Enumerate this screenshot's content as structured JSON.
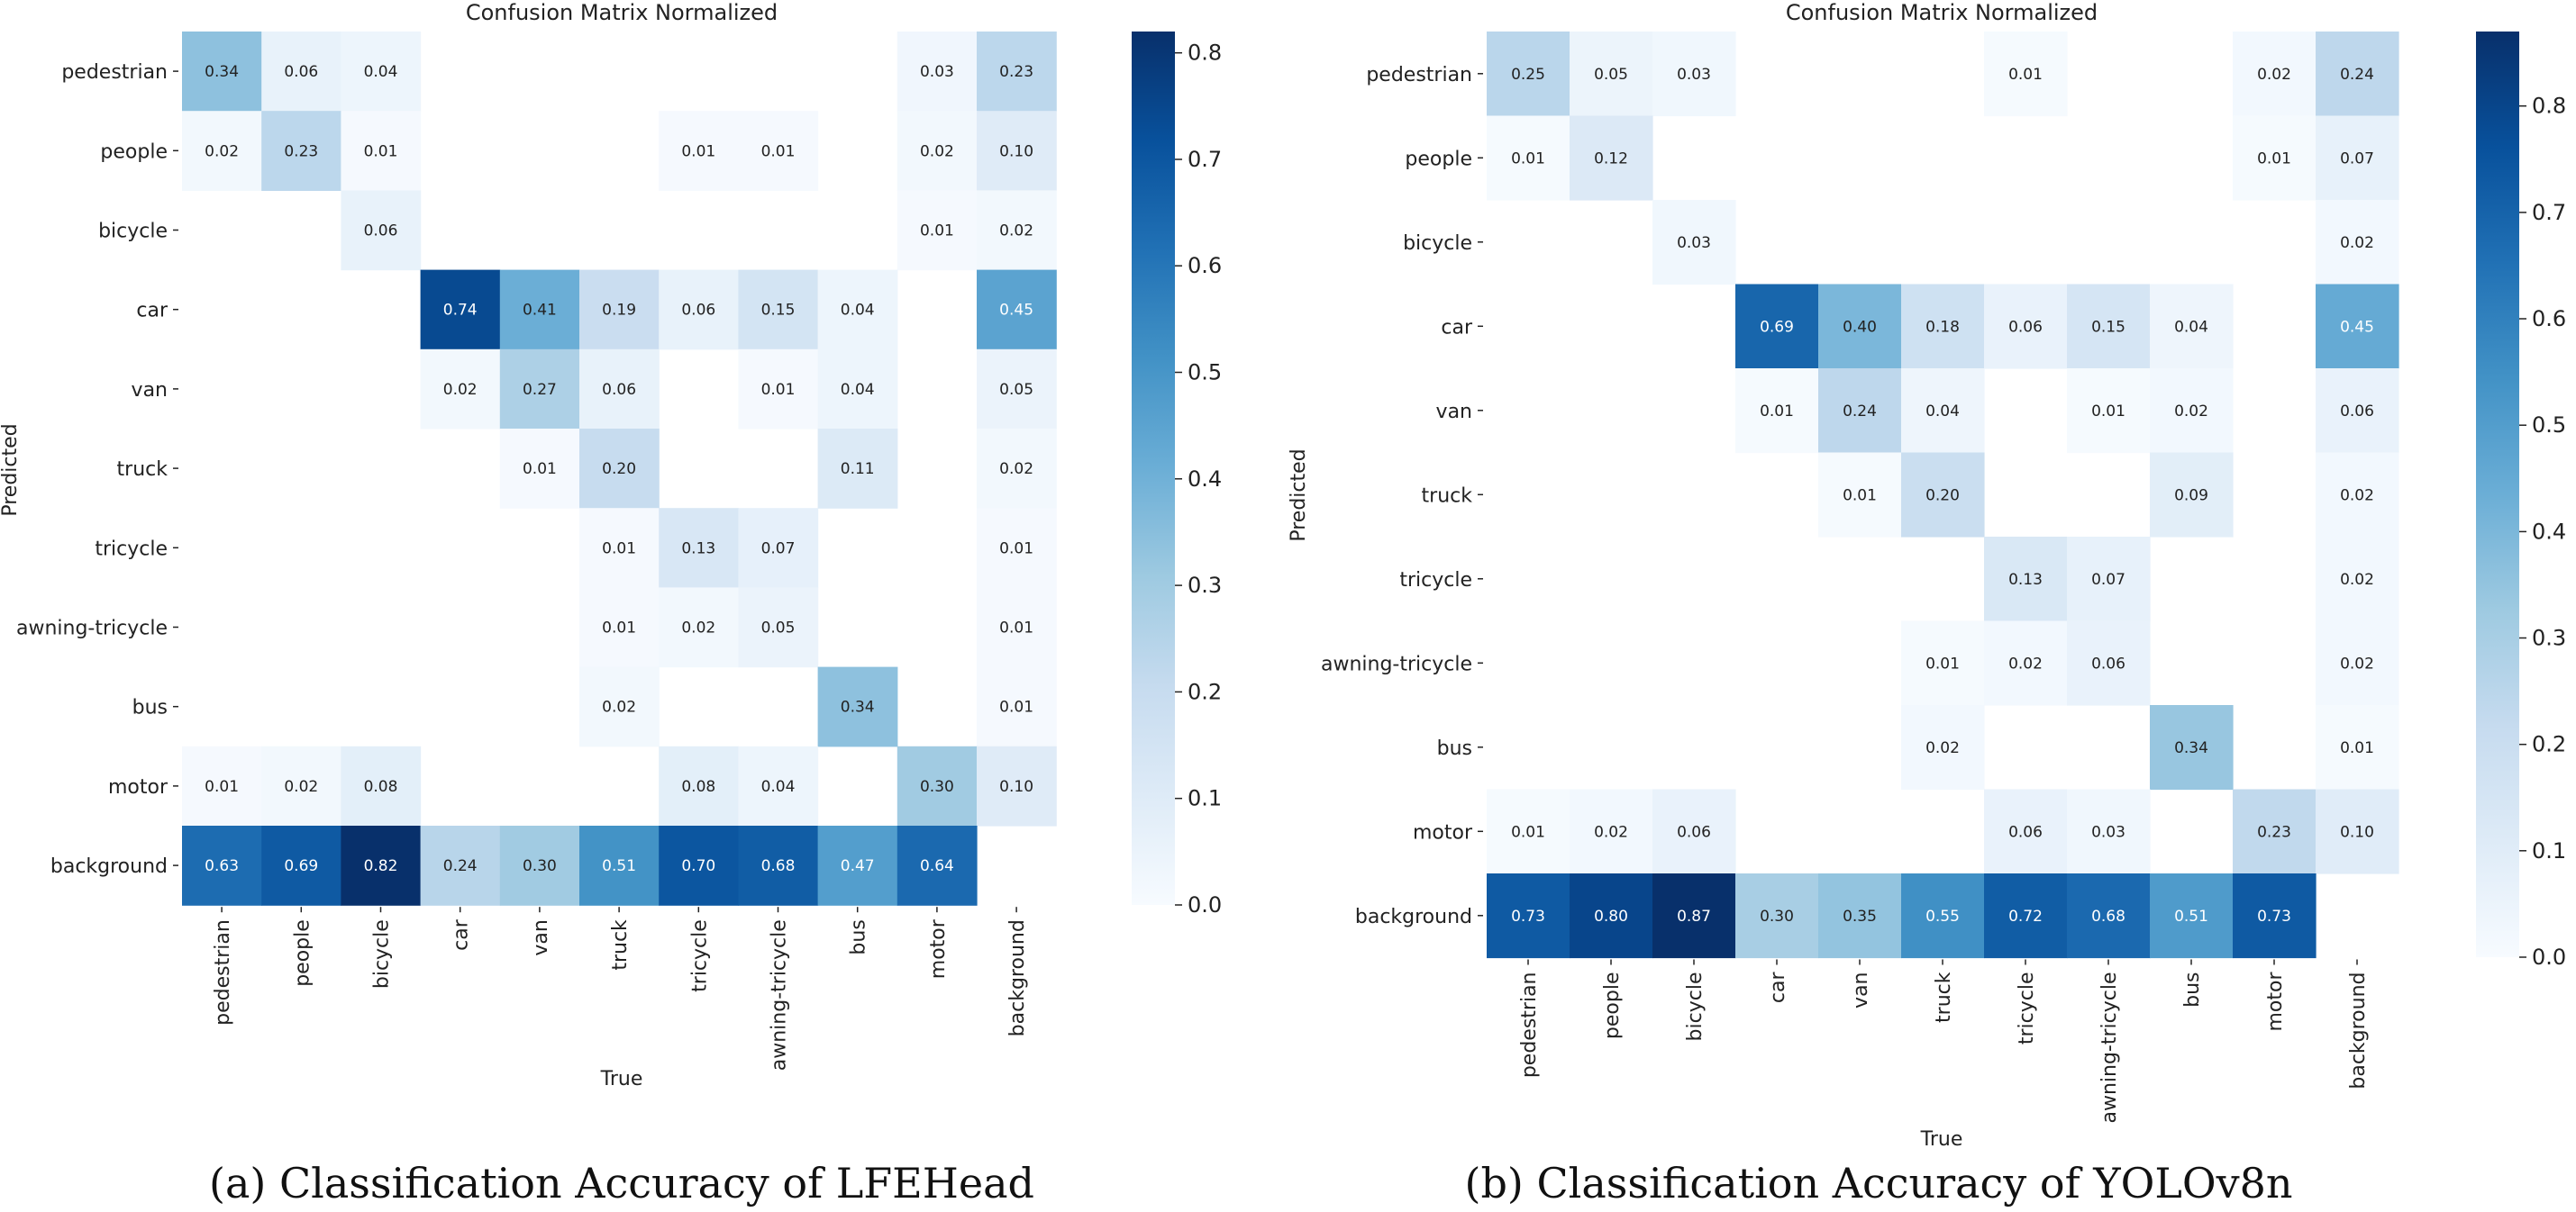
{
  "chart_data": [
    {
      "type": "heatmap",
      "title": "Confusion Matrix Normalized",
      "xlabel": "True",
      "ylabel": "Predicted",
      "caption": "(a) Classification Accuracy of LFEHead",
      "x_labels": [
        "pedestrian",
        "people",
        "bicycle",
        "car",
        "van",
        "truck",
        "tricycle",
        "awning-tricycle",
        "bus",
        "motor",
        "background"
      ],
      "y_labels": [
        "pedestrian",
        "people",
        "bicycle",
        "car",
        "van",
        "truck",
        "tricycle",
        "awning-tricycle",
        "bus",
        "motor",
        "background"
      ],
      "colorbar": {
        "min": 0,
        "max": 0.82,
        "ticks": [
          "0.0",
          "0.1",
          "0.2",
          "0.3",
          "0.4",
          "0.5",
          "0.6",
          "0.7",
          "0.8"
        ]
      },
      "values": [
        [
          0.34,
          0.06,
          0.04,
          null,
          null,
          null,
          null,
          null,
          null,
          0.03,
          0.23
        ],
        [
          0.02,
          0.23,
          0.01,
          null,
          null,
          null,
          0.01,
          0.01,
          null,
          0.02,
          0.1
        ],
        [
          null,
          null,
          0.06,
          null,
          null,
          null,
          null,
          null,
          null,
          0.01,
          0.02
        ],
        [
          null,
          null,
          null,
          0.74,
          0.41,
          0.19,
          0.06,
          0.15,
          0.04,
          null,
          0.45
        ],
        [
          null,
          null,
          null,
          0.02,
          0.27,
          0.06,
          null,
          0.01,
          0.04,
          null,
          0.05
        ],
        [
          null,
          null,
          null,
          null,
          0.01,
          0.2,
          null,
          null,
          0.11,
          null,
          0.02
        ],
        [
          null,
          null,
          null,
          null,
          null,
          0.01,
          0.13,
          0.07,
          null,
          null,
          0.01
        ],
        [
          null,
          null,
          null,
          null,
          null,
          0.01,
          0.02,
          0.05,
          null,
          null,
          0.01
        ],
        [
          null,
          null,
          null,
          null,
          null,
          0.02,
          null,
          null,
          0.34,
          null,
          0.01
        ],
        [
          0.01,
          0.02,
          0.08,
          null,
          null,
          null,
          0.08,
          0.04,
          null,
          0.3,
          0.1
        ],
        [
          0.63,
          0.69,
          0.82,
          0.24,
          0.3,
          0.51,
          0.7,
          0.68,
          0.47,
          0.64,
          null
        ]
      ]
    },
    {
      "type": "heatmap",
      "title": "Confusion Matrix Normalized",
      "xlabel": "True",
      "ylabel": "Predicted",
      "caption": "(b) Classification Accuracy of YOLOv8n",
      "x_labels": [
        "pedestrian",
        "people",
        "bicycle",
        "car",
        "van",
        "truck",
        "tricycle",
        "awning-tricycle",
        "bus",
        "motor",
        "background"
      ],
      "y_labels": [
        "pedestrian",
        "people",
        "bicycle",
        "car",
        "van",
        "truck",
        "tricycle",
        "awning-tricycle",
        "bus",
        "motor",
        "background"
      ],
      "colorbar": {
        "min": 0,
        "max": 0.87,
        "ticks": [
          "0.0",
          "0.1",
          "0.2",
          "0.3",
          "0.4",
          "0.5",
          "0.6",
          "0.7",
          "0.8"
        ]
      },
      "values": [
        [
          0.25,
          0.05,
          0.03,
          null,
          null,
          null,
          0.01,
          null,
          null,
          0.02,
          0.24
        ],
        [
          0.01,
          0.12,
          null,
          null,
          null,
          null,
          null,
          null,
          null,
          0.01,
          0.07
        ],
        [
          null,
          null,
          0.03,
          null,
          null,
          null,
          null,
          null,
          null,
          null,
          0.02
        ],
        [
          null,
          null,
          null,
          0.69,
          0.4,
          0.18,
          0.06,
          0.15,
          0.04,
          null,
          0.45
        ],
        [
          null,
          null,
          null,
          0.01,
          0.24,
          0.04,
          null,
          0.01,
          0.02,
          null,
          0.06
        ],
        [
          null,
          null,
          null,
          null,
          0.01,
          0.2,
          null,
          null,
          0.09,
          null,
          0.02
        ],
        [
          null,
          null,
          null,
          null,
          null,
          null,
          0.13,
          0.07,
          null,
          null,
          0.02
        ],
        [
          null,
          null,
          null,
          null,
          null,
          0.01,
          0.02,
          0.06,
          null,
          null,
          0.02
        ],
        [
          null,
          null,
          null,
          null,
          null,
          0.02,
          null,
          null,
          0.34,
          null,
          0.01
        ],
        [
          0.01,
          0.02,
          0.06,
          null,
          null,
          null,
          0.06,
          0.03,
          null,
          0.23,
          0.1
        ],
        [
          0.73,
          0.8,
          0.87,
          0.3,
          0.35,
          0.55,
          0.72,
          0.68,
          0.51,
          0.73,
          null
        ]
      ]
    }
  ]
}
